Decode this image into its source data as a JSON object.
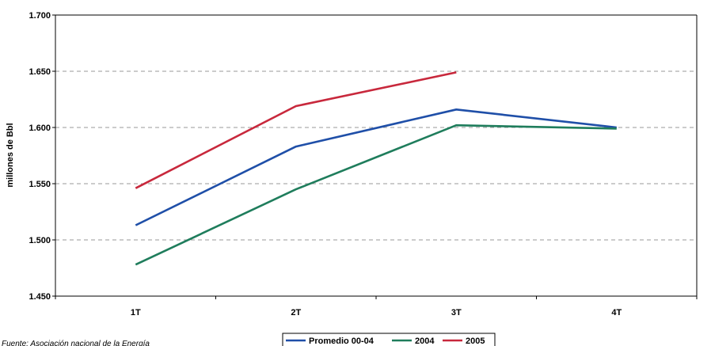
{
  "chart_data": {
    "type": "line",
    "categories": [
      "1T",
      "2T",
      "3T",
      "4T"
    ],
    "series": [
      {
        "name": "Promedio 00-04",
        "values": [
          1.513,
          1.583,
          1.616,
          1.6
        ],
        "color": "#1f4fa8"
      },
      {
        "name": "2004",
        "values": [
          1.478,
          1.545,
          1.602,
          1.599
        ],
        "color": "#1f7d5c"
      },
      {
        "name": "2005",
        "values": [
          1.546,
          1.619,
          1.649,
          null
        ],
        "color": "#c8283c"
      }
    ],
    "ylabel": "millones de Bbl",
    "ylim": [
      1.45,
      1.7
    ],
    "yticks": [
      1.45,
      1.5,
      1.55,
      1.6,
      1.65,
      1.7
    ],
    "ytick_labels": [
      "1.450",
      "1.500",
      "1.550",
      "1.600",
      "1.650",
      "1.700"
    ],
    "grid": "dashed horizontal",
    "legend_position": "bottom-center",
    "source_note": "Fuente: Asociación nacional de la Energía"
  }
}
